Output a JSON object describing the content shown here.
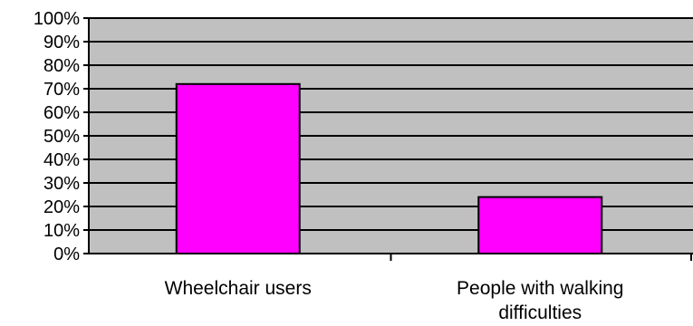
{
  "chart_data": {
    "type": "bar",
    "categories": [
      "Wheelchair users",
      "People with walking difficulties"
    ],
    "category_label_lines": [
      [
        "Wheelchair users"
      ],
      [
        "People with walking",
        "difficulties"
      ]
    ],
    "values": [
      72,
      24
    ],
    "y_unit": "%",
    "ylim": [
      0,
      100
    ],
    "y_ticks": [
      0,
      10,
      20,
      30,
      40,
      50,
      60,
      70,
      80,
      90,
      100
    ],
    "y_tick_labels": [
      "0%",
      "10%",
      "20%",
      "30%",
      "40%",
      "50%",
      "60%",
      "70%",
      "80%",
      "90%",
      "100%"
    ],
    "title": "",
    "xlabel": "",
    "ylabel": "",
    "grid": true,
    "legend": "none",
    "colors": {
      "bar_fill": "#ff00ff",
      "bar_stroke": "#000000",
      "plot_background": "#c0c0c0",
      "gridline": "#000000",
      "axis": "#000000"
    }
  }
}
